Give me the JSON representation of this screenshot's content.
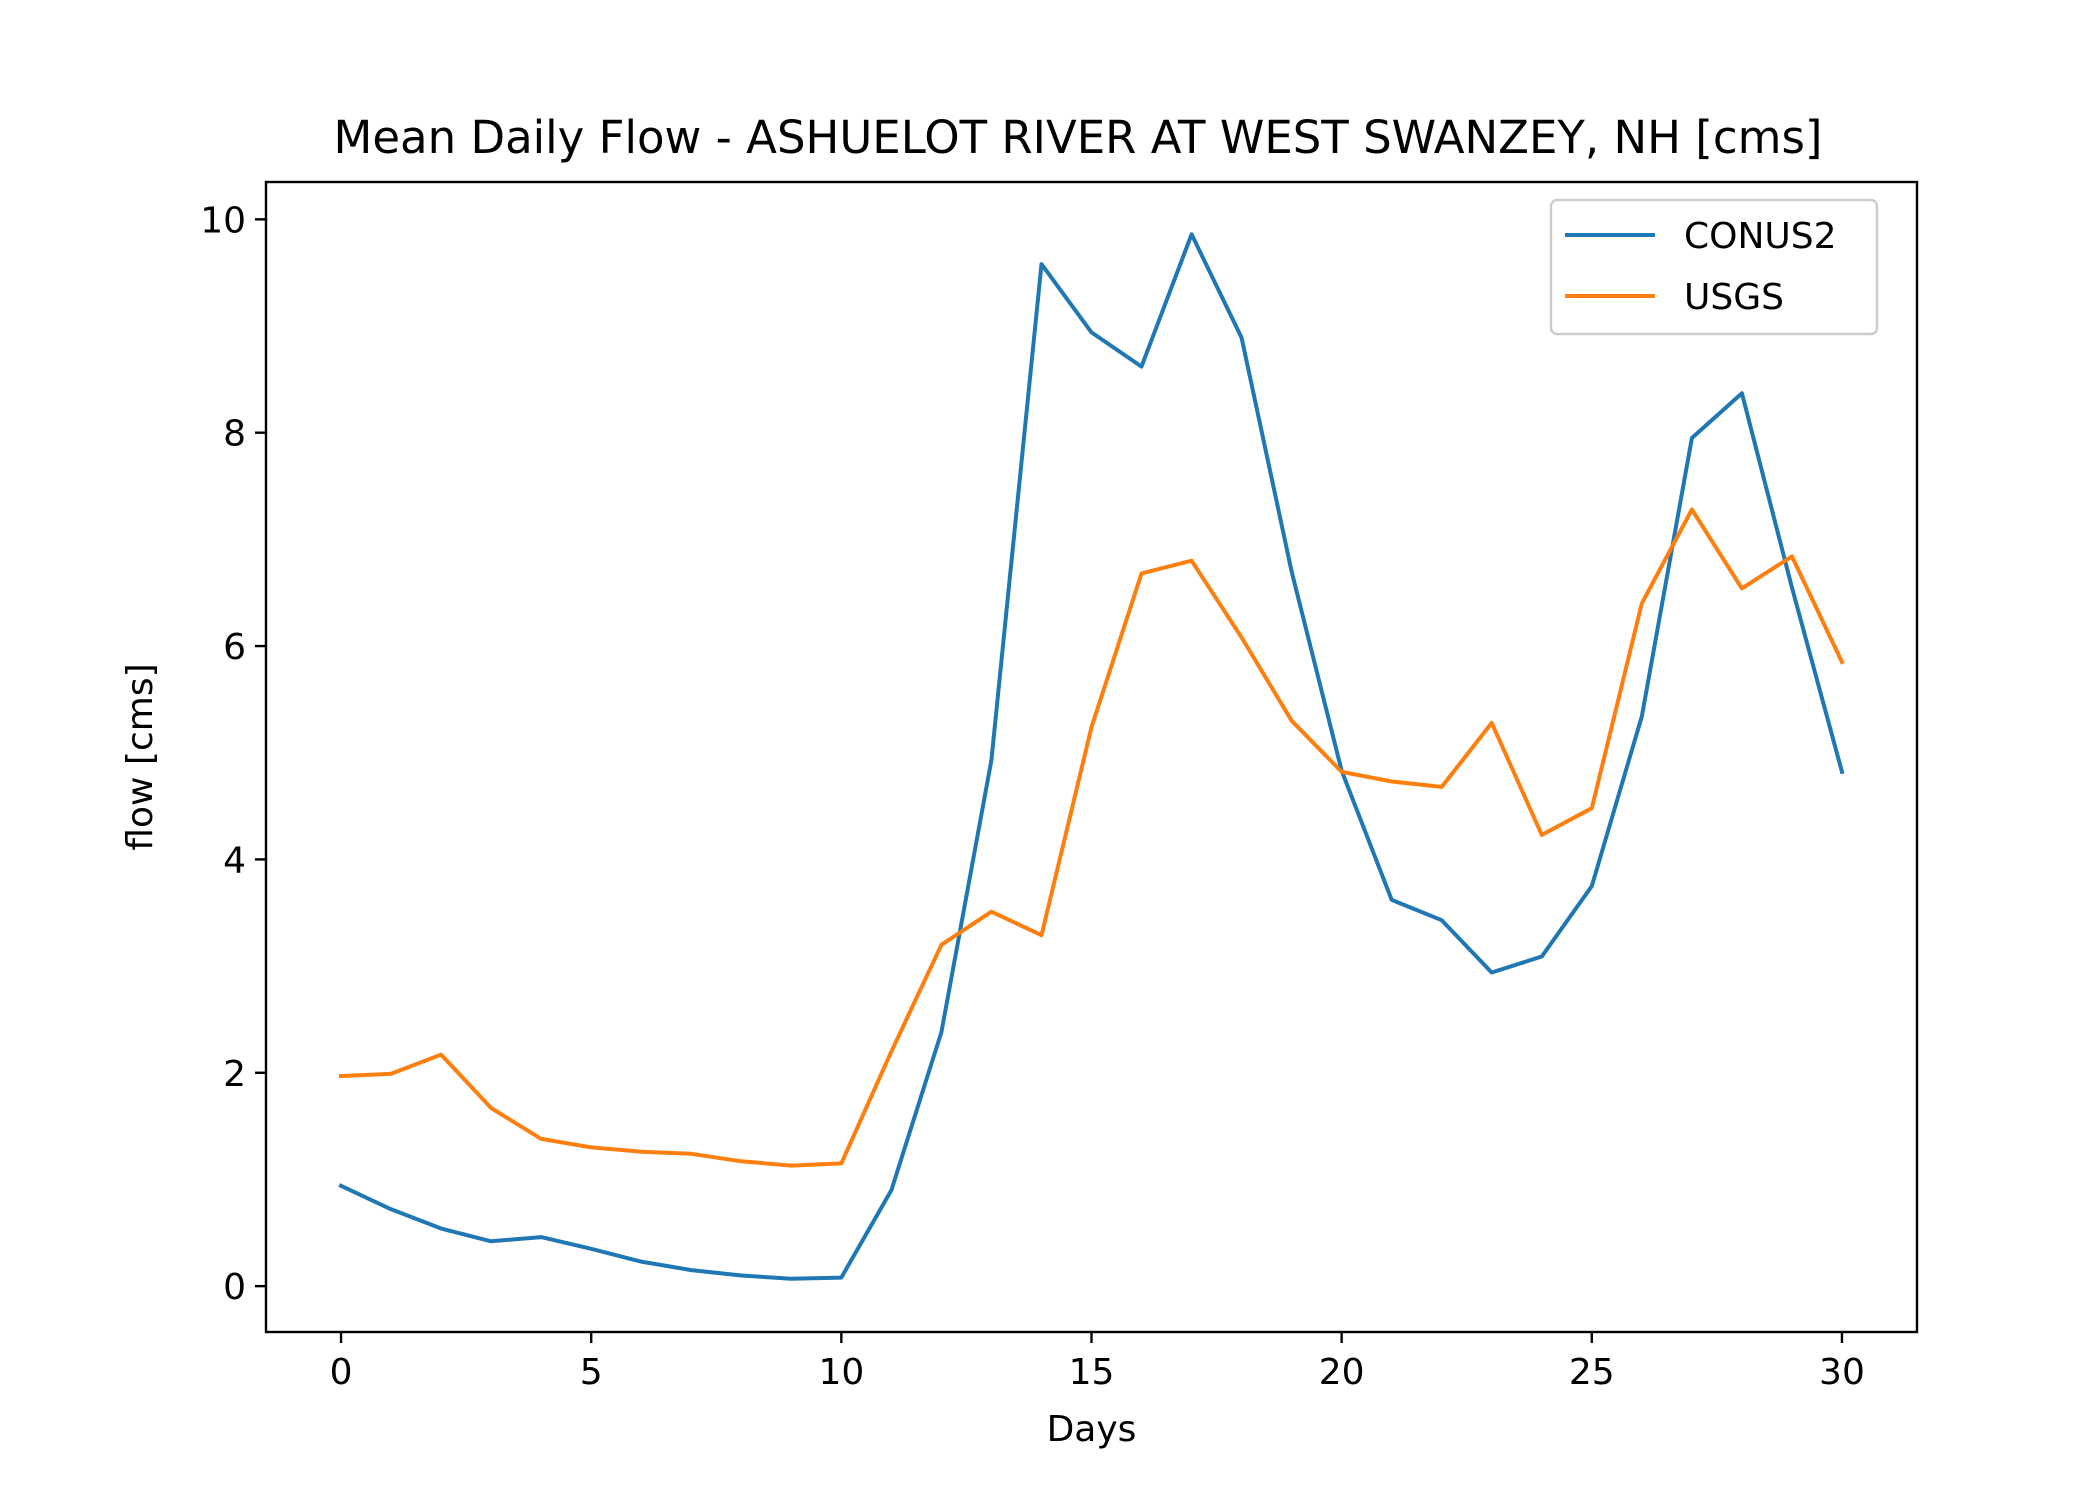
{
  "chart_data": {
    "type": "line",
    "title": "Mean Daily Flow - ASHUELOT RIVER AT WEST SWANZEY, NH [cms]",
    "xlabel": "Days",
    "ylabel": "flow [cms]",
    "xlim": [
      -1.5,
      31.5
    ],
    "ylim": [
      -0.43,
      10.35
    ],
    "xticks": [
      0,
      5,
      10,
      15,
      20,
      25,
      30
    ],
    "yticks": [
      0,
      2,
      4,
      6,
      8,
      10
    ],
    "grid": false,
    "legend_position": "top-right",
    "x": [
      0,
      1,
      2,
      3,
      4,
      5,
      6,
      7,
      8,
      9,
      10,
      11,
      12,
      13,
      14,
      15,
      16,
      17,
      18,
      19,
      20,
      21,
      22,
      23,
      24,
      25,
      26,
      27,
      28,
      29,
      30
    ],
    "series": [
      {
        "name": "CONUS2",
        "color": "#1f77b4",
        "values": [
          0.94,
          0.72,
          0.54,
          0.42,
          0.46,
          0.35,
          0.23,
          0.15,
          0.1,
          0.07,
          0.08,
          0.9,
          2.38,
          4.93,
          9.58,
          8.94,
          8.62,
          9.86,
          8.89,
          6.7,
          4.83,
          3.62,
          3.43,
          2.94,
          3.09,
          3.75,
          5.34,
          7.95,
          8.37,
          6.55,
          4.82
        ]
      },
      {
        "name": "USGS",
        "color": "#ff7f0e",
        "values": [
          1.97,
          1.99,
          2.17,
          1.67,
          1.38,
          1.3,
          1.26,
          1.24,
          1.17,
          1.13,
          1.15,
          2.2,
          3.2,
          3.51,
          3.29,
          5.24,
          6.68,
          6.8,
          6.08,
          5.3,
          4.82,
          4.73,
          4.68,
          5.28,
          4.23,
          4.48,
          6.4,
          7.28,
          6.54,
          6.84,
          5.85
        ]
      }
    ]
  }
}
